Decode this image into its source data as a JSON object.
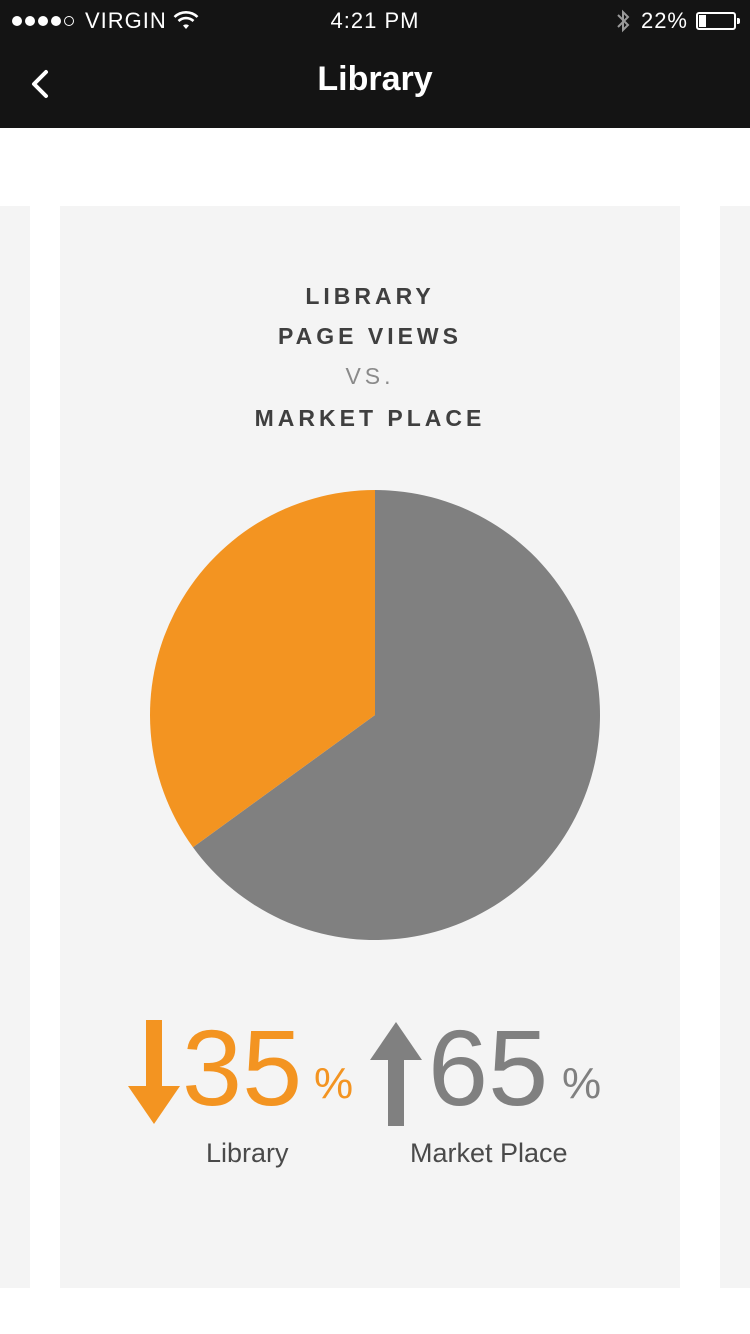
{
  "status_bar": {
    "carrier": "VIRGIN",
    "time": "4:21 PM",
    "battery": "22%",
    "battery_level": 0.22,
    "signal_bars": 4,
    "signal_max": 5,
    "icons": [
      "signal-dots-icon",
      "wifi-icon",
      "bluetooth-icon",
      "battery-icon"
    ]
  },
  "nav": {
    "title": "Library",
    "back_icon": "chevron-left-icon"
  },
  "card": {
    "heading_line1": "LIBRARY",
    "heading_line2": "PAGE VIEWS",
    "heading_vs": "VS.",
    "heading_line3": "MARKET PLACE"
  },
  "stats": {
    "library": {
      "value": "35",
      "unit": "%",
      "label": "Library",
      "trend": "down",
      "icon": "arrow-down-icon"
    },
    "market": {
      "value": "65",
      "unit": "%",
      "label": "Market Place",
      "trend": "up",
      "icon": "arrow-up-icon"
    }
  },
  "colors": {
    "library": "#f39421",
    "market": "#808080",
    "bar": "#141414",
    "card": "#f4f4f4"
  },
  "chart_data": {
    "type": "pie",
    "categories": [
      "Library",
      "Market Place"
    ],
    "values": [
      35,
      65
    ],
    "colors": [
      "#f39421",
      "#808080"
    ],
    "title": "LIBRARY PAGE VIEWS VS. MARKET PLACE"
  }
}
